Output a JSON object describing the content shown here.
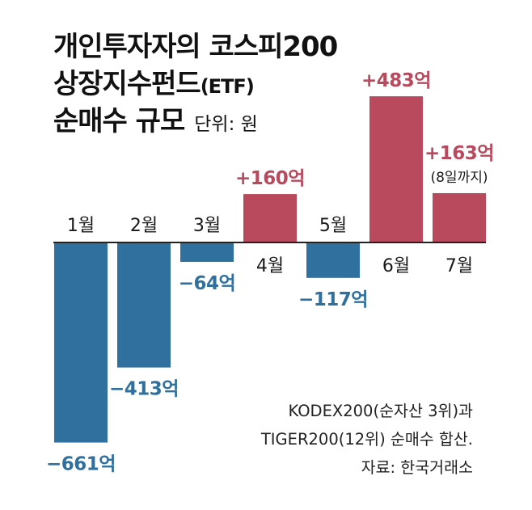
{
  "title": {
    "line1": "개인투자자의 코스피200",
    "line2_main": "상장지수펀드",
    "line2_suffix": "(ETF)",
    "line3": "순매수 규모",
    "unit": "단위: 원"
  },
  "notes": {
    "line1": "KODEX200(순자산 3위)과",
    "line2": "TIGER200(12위) 순매수 합산.",
    "source": "자료: 한국거래소"
  },
  "colors": {
    "positive": "#b94a5e",
    "negative": "#30709e",
    "axis": "#222222"
  },
  "chart_data": {
    "type": "bar",
    "categories": [
      "1월",
      "2월",
      "3월",
      "4월",
      "5월",
      "6월",
      "7월"
    ],
    "values": [
      -661,
      -413,
      -64,
      160,
      -117,
      483,
      163
    ],
    "data_labels": [
      "−661억",
      "−413억",
      "−64억",
      "+160억",
      "−117억",
      "+483억",
      "+163억"
    ],
    "annotations": [
      {
        "category": "7월",
        "text": "(8일까지)"
      }
    ],
    "title": "개인투자자의 코스피200 상장지수펀드(ETF) 순매수 규모",
    "unit": "억 원",
    "ylim": [
      -661,
      483
    ],
    "grid": false
  }
}
